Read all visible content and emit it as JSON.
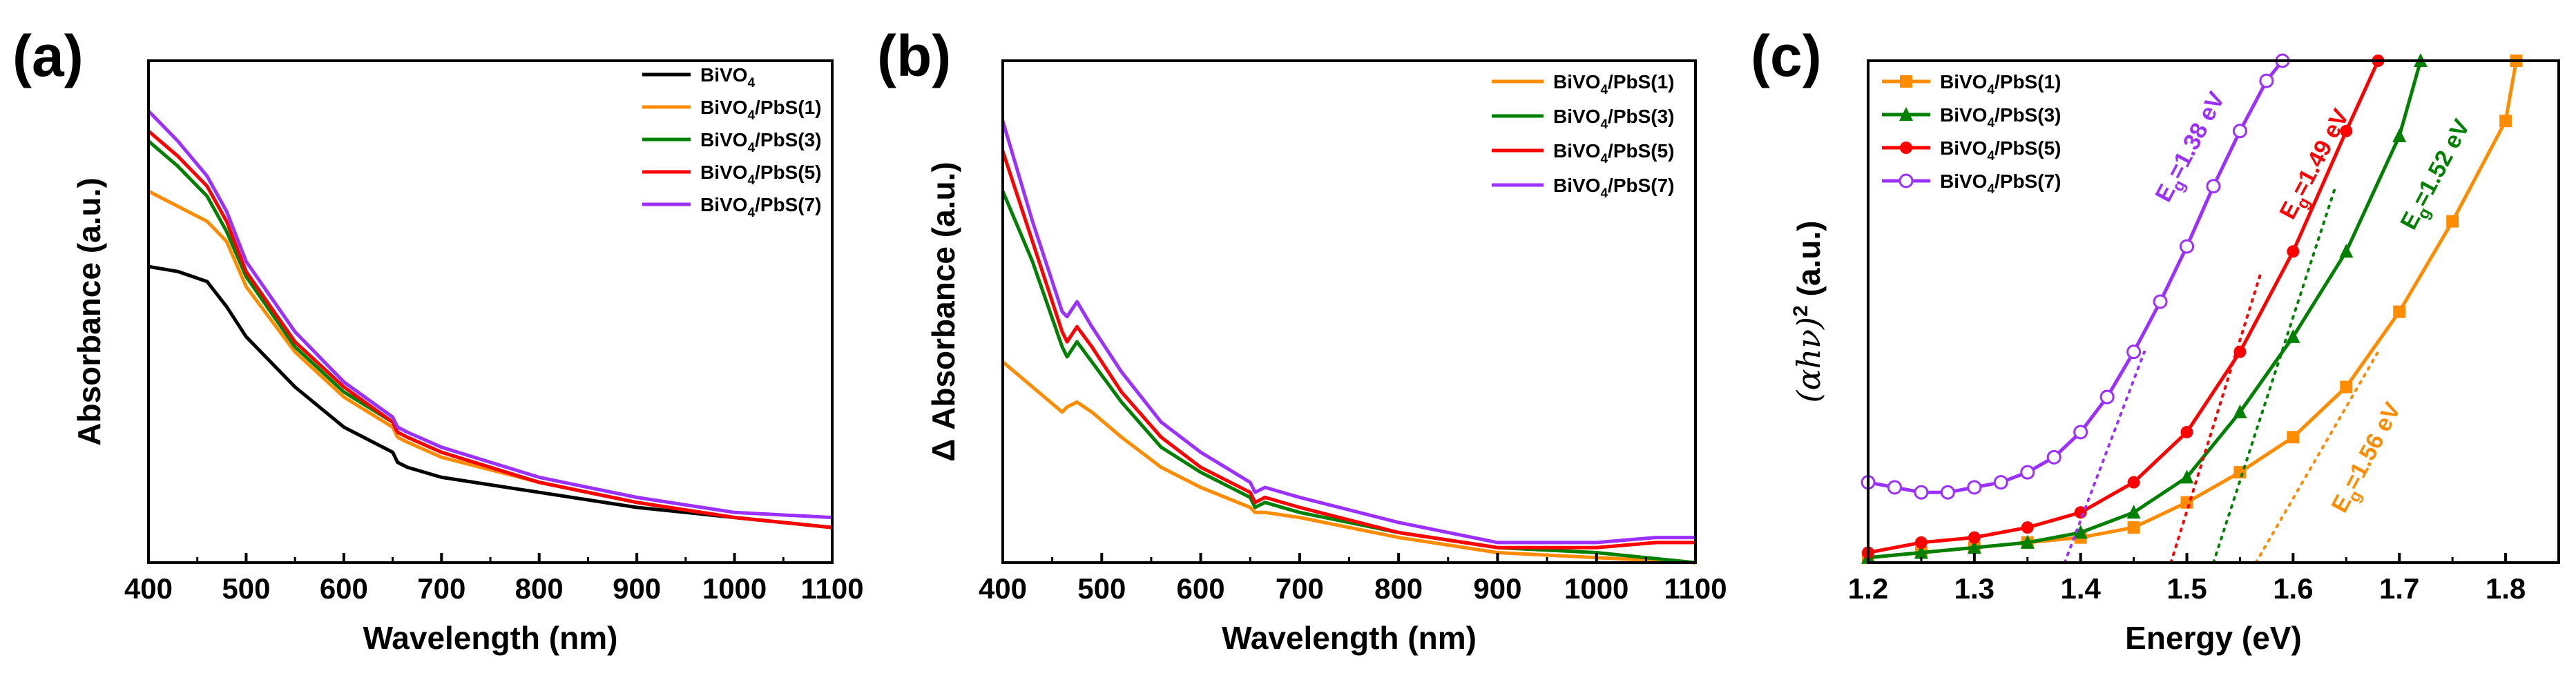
{
  "chart_data": [
    {
      "id": "a",
      "panel_label": "(a)",
      "type": "line",
      "xlabel": "Wavelength (nm)",
      "ylabel": "Absorbance (a.u.)",
      "xlim": [
        400,
        1100
      ],
      "ylim": [
        0,
        1.0
      ],
      "xticks": [
        "400",
        "500",
        "600",
        "700",
        "800",
        "900",
        "1000",
        "1100"
      ],
      "legend_position": "top-right",
      "series": [
        {
          "name": "BiVO4",
          "legend_main": "BiVO",
          "legend_sub": "4",
          "legend_suffix": "",
          "color": "#000000",
          "x": [
            400,
            430,
            460,
            480,
            500,
            550,
            600,
            650,
            655,
            665,
            700,
            800,
            900,
            1000,
            1100
          ],
          "y": [
            0.59,
            0.58,
            0.56,
            0.51,
            0.45,
            0.35,
            0.27,
            0.22,
            0.2,
            0.19,
            0.17,
            0.14,
            0.11,
            0.09,
            0.07
          ]
        },
        {
          "name": "BiVO4/PbS(1)",
          "legend_main": "BiVO",
          "legend_sub": "4",
          "legend_suffix": "/PbS(1)",
          "color": "#FF8C00",
          "x": [
            400,
            430,
            460,
            480,
            500,
            550,
            600,
            650,
            655,
            665,
            700,
            800,
            900,
            1000,
            1100
          ],
          "y": [
            0.74,
            0.71,
            0.68,
            0.64,
            0.55,
            0.42,
            0.33,
            0.27,
            0.25,
            0.24,
            0.21,
            0.16,
            0.12,
            0.09,
            0.07
          ]
        },
        {
          "name": "BiVO4/PbS(3)",
          "legend_main": "BiVO",
          "legend_sub": "4",
          "legend_suffix": "/PbS(3)",
          "color": "#008000",
          "x": [
            400,
            430,
            460,
            480,
            500,
            550,
            600,
            650,
            655,
            665,
            700,
            800,
            900,
            1000,
            1100
          ],
          "y": [
            0.84,
            0.79,
            0.73,
            0.66,
            0.57,
            0.43,
            0.34,
            0.28,
            0.26,
            0.25,
            0.22,
            0.16,
            0.12,
            0.09,
            0.07
          ]
        },
        {
          "name": "BiVO4/PbS(5)",
          "legend_main": "BiVO",
          "legend_sub": "4",
          "legend_suffix": "/PbS(5)",
          "color": "#FF0000",
          "x": [
            400,
            430,
            460,
            480,
            500,
            550,
            600,
            650,
            655,
            665,
            700,
            800,
            900,
            1000,
            1100
          ],
          "y": [
            0.86,
            0.81,
            0.75,
            0.68,
            0.58,
            0.44,
            0.35,
            0.28,
            0.26,
            0.25,
            0.22,
            0.16,
            0.12,
            0.09,
            0.07
          ]
        },
        {
          "name": "BiVO4/PbS(7)",
          "legend_main": "BiVO",
          "legend_sub": "4",
          "legend_suffix": "/PbS(7)",
          "color": "#9B30FF",
          "x": [
            400,
            430,
            460,
            480,
            500,
            550,
            600,
            650,
            655,
            665,
            700,
            800,
            900,
            1000,
            1100
          ],
          "y": [
            0.9,
            0.84,
            0.77,
            0.7,
            0.6,
            0.46,
            0.36,
            0.29,
            0.27,
            0.26,
            0.23,
            0.17,
            0.13,
            0.1,
            0.09
          ]
        }
      ]
    },
    {
      "id": "b",
      "panel_label": "(b)",
      "type": "line",
      "xlabel": "Wavelength (nm)",
      "ylabel": "Δ Absorbance (a.u.)",
      "xlim": [
        400,
        1100
      ],
      "ylim": [
        0,
        1.0
      ],
      "xticks": [
        "400",
        "500",
        "600",
        "700",
        "800",
        "900",
        "1000",
        "1100"
      ],
      "legend_position": "top-right",
      "series": [
        {
          "name": "BiVO4/PbS(1)",
          "legend_main": "BiVO",
          "legend_sub": "4",
          "legend_suffix": "/PbS(1)",
          "color": "#FF8C00",
          "x": [
            400,
            430,
            460,
            465,
            475,
            490,
            520,
            560,
            600,
            650,
            655,
            665,
            700,
            800,
            900,
            1000,
            1100
          ],
          "y": [
            0.4,
            0.35,
            0.3,
            0.31,
            0.32,
            0.3,
            0.25,
            0.19,
            0.15,
            0.11,
            0.1,
            0.1,
            0.09,
            0.05,
            0.02,
            0.01,
            0.0
          ]
        },
        {
          "name": "BiVO4/PbS(3)",
          "legend_main": "BiVO",
          "legend_sub": "4",
          "legend_suffix": "/PbS(3)",
          "color": "#008000",
          "x": [
            400,
            430,
            460,
            465,
            475,
            490,
            520,
            560,
            600,
            650,
            655,
            665,
            700,
            800,
            900,
            1000,
            1100
          ],
          "y": [
            0.74,
            0.6,
            0.43,
            0.41,
            0.44,
            0.4,
            0.32,
            0.23,
            0.18,
            0.13,
            0.11,
            0.12,
            0.1,
            0.06,
            0.03,
            0.02,
            0.0
          ]
        },
        {
          "name": "BiVO4/PbS(5)",
          "legend_main": "BiVO",
          "legend_sub": "4",
          "legend_suffix": "/PbS(5)",
          "color": "#FF0000",
          "x": [
            400,
            430,
            460,
            465,
            475,
            490,
            520,
            560,
            600,
            650,
            655,
            665,
            700,
            800,
            900,
            1000,
            1060,
            1100
          ],
          "y": [
            0.82,
            0.64,
            0.46,
            0.44,
            0.47,
            0.43,
            0.34,
            0.25,
            0.19,
            0.14,
            0.12,
            0.13,
            0.11,
            0.06,
            0.03,
            0.03,
            0.04,
            0.04
          ]
        },
        {
          "name": "BiVO4/PbS(7)",
          "legend_main": "BiVO",
          "legend_sub": "4",
          "legend_suffix": "/PbS(7)",
          "color": "#9B30FF",
          "x": [
            400,
            430,
            460,
            465,
            475,
            490,
            520,
            560,
            600,
            650,
            655,
            665,
            700,
            800,
            900,
            1000,
            1060,
            1100
          ],
          "y": [
            0.88,
            0.68,
            0.5,
            0.49,
            0.52,
            0.47,
            0.38,
            0.28,
            0.22,
            0.16,
            0.14,
            0.15,
            0.13,
            0.08,
            0.04,
            0.04,
            0.05,
            0.05
          ]
        }
      ]
    },
    {
      "id": "c",
      "panel_label": "(c)",
      "type": "line",
      "xlabel": "Energy (eV)",
      "ylabel_html": "(αhν)²",
      "ylabel_main": "(αhν)",
      "ylabel_sup": "2",
      "ylabel_unit": " (a.u.)",
      "xlim": [
        1.2,
        1.85
      ],
      "ylim": [
        0,
        1.0
      ],
      "xticks": [
        "1.2",
        "1.3",
        "1.4",
        "1.5",
        "1.6",
        "1.7",
        "1.8"
      ],
      "legend_position": "top-left",
      "series": [
        {
          "name": "BiVO4/PbS(1)",
          "legend_main": "BiVO",
          "legend_sub": "4",
          "legend_suffix": "/PbS(1)",
          "color": "#FF8C00",
          "marker": "square",
          "x": [
            1.2,
            1.25,
            1.3,
            1.35,
            1.4,
            1.45,
            1.5,
            1.55,
            1.6,
            1.65,
            1.7,
            1.75,
            1.8,
            1.81
          ],
          "y": [
            0.01,
            0.02,
            0.03,
            0.04,
            0.05,
            0.07,
            0.12,
            0.18,
            0.25,
            0.35,
            0.5,
            0.68,
            0.88,
            1.0
          ],
          "tangent": {
            "x": [
              1.565,
              1.68
            ],
            "y": [
              0.0,
              0.42
            ]
          },
          "bandgap": "1.56 eV"
        },
        {
          "name": "BiVO4/PbS(3)",
          "legend_main": "BiVO",
          "legend_sub": "4",
          "legend_suffix": "/PbS(3)",
          "color": "#008000",
          "marker": "triangle",
          "x": [
            1.2,
            1.25,
            1.3,
            1.35,
            1.4,
            1.45,
            1.5,
            1.55,
            1.6,
            1.65,
            1.7,
            1.72
          ],
          "y": [
            0.01,
            0.02,
            0.03,
            0.04,
            0.06,
            0.1,
            0.17,
            0.3,
            0.45,
            0.62,
            0.85,
            1.0
          ],
          "tangent": {
            "x": [
              1.525,
              1.64
            ],
            "y": [
              0.0,
              0.75
            ]
          },
          "bandgap": "1.52 eV"
        },
        {
          "name": "BiVO4/PbS(5)",
          "legend_main": "BiVO",
          "legend_sub": "4",
          "legend_suffix": "/PbS(5)",
          "color": "#FF0000",
          "marker": "circle",
          "x": [
            1.2,
            1.25,
            1.3,
            1.35,
            1.4,
            1.45,
            1.5,
            1.55,
            1.6,
            1.65,
            1.68
          ],
          "y": [
            0.02,
            0.04,
            0.05,
            0.07,
            0.1,
            0.16,
            0.26,
            0.42,
            0.62,
            0.86,
            1.0
          ],
          "tangent": {
            "x": [
              1.485,
              1.57
            ],
            "y": [
              0.0,
              0.58
            ]
          },
          "bandgap": "1.49 eV"
        },
        {
          "name": "BiVO4/PbS(7)",
          "legend_main": "BiVO",
          "legend_sub": "4",
          "legend_suffix": "/PbS(7)",
          "color": "#9B30FF",
          "marker": "open-circle",
          "x": [
            1.2,
            1.225,
            1.25,
            1.275,
            1.3,
            1.325,
            1.35,
            1.375,
            1.4,
            1.425,
            1.45,
            1.475,
            1.5,
            1.525,
            1.55,
            1.575,
            1.59
          ],
          "y": [
            0.16,
            0.15,
            0.14,
            0.14,
            0.15,
            0.16,
            0.18,
            0.21,
            0.26,
            0.33,
            0.42,
            0.52,
            0.63,
            0.75,
            0.86,
            0.96,
            1.0
          ],
          "tangent": {
            "x": [
              1.385,
              1.46
            ],
            "y": [
              0.0,
              0.42
            ]
          },
          "bandgap": "1.38 eV"
        }
      ]
    }
  ]
}
